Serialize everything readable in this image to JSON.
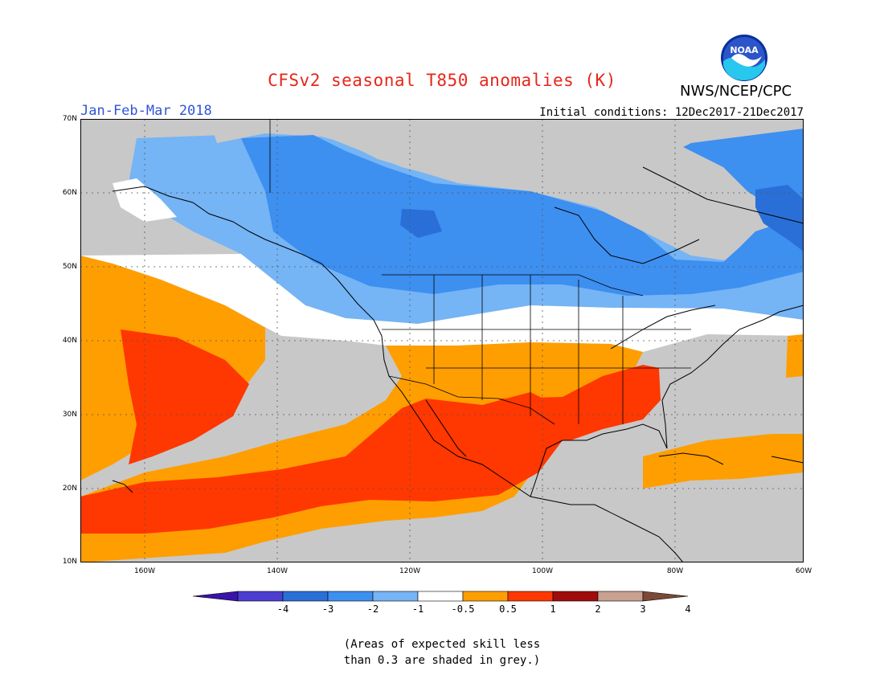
{
  "title": "CFSv2 seasonal T850 anomalies (K)",
  "agency": "NWS/NCEP/CPC",
  "logo_text": "NOAA",
  "period": "Jan-Feb-Mar 2018",
  "initial_conditions": "Initial conditions: 12Dec2017-21Dec2017",
  "lat_labels": [
    "70N",
    "60N",
    "50N",
    "40N",
    "30N",
    "20N",
    "10N"
  ],
  "lon_labels": [
    "160W",
    "140W",
    "120W",
    "100W",
    "80W",
    "60W"
  ],
  "colorbar": {
    "ticks": [
      "-4",
      "-3",
      "-2",
      "-1",
      "-0.5",
      "0.5",
      "1",
      "2",
      "3",
      "4"
    ],
    "colors": [
      "#3a13a8",
      "#4b3ed1",
      "#2a6fd8",
      "#3d8ff0",
      "#75b4f5",
      "#ffffff",
      "#ff9e00",
      "#ff3700",
      "#a00b0b",
      "#c9a190",
      "#7a4a36"
    ]
  },
  "skill_note": {
    "line1": "(Areas of expected skill less",
    "line2": "than 0.3 are shaded in grey.)"
  },
  "grey_color": "#c8c8c8"
}
